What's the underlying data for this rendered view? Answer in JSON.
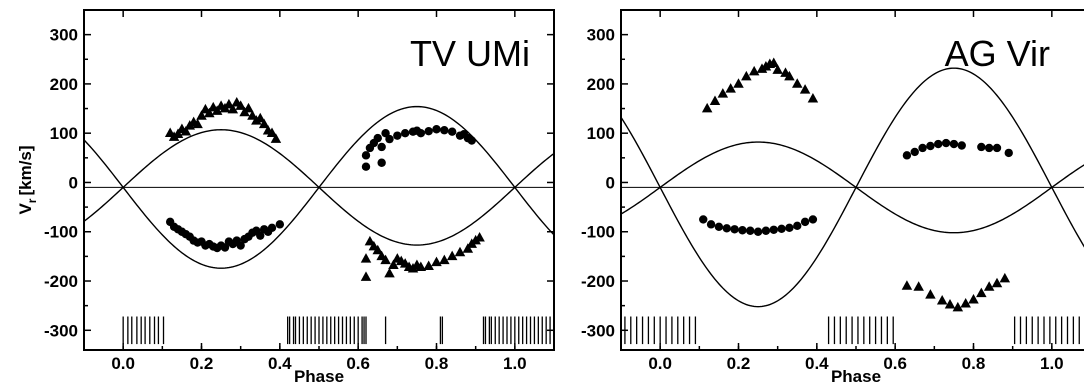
{
  "chart_data": [
    {
      "type": "scatter",
      "star": "TV UMi",
      "xlabel": "Phase",
      "ylabel": "V",
      "ylabel_sub": "r",
      "ylabel_unit": "[km/s]",
      "xlim": [
        -0.1,
        1.1
      ],
      "ylim": [
        -340,
        350
      ],
      "x_ticks": [
        0.0,
        0.2,
        0.4,
        0.6,
        0.8,
        1.0
      ],
      "x_tick_labels": [
        "0.0",
        "0.2",
        "0.4",
        "0.6",
        "0.8",
        "1.0"
      ],
      "y_ticks": [
        300,
        200,
        100,
        0,
        -100,
        -200,
        -300
      ],
      "y_tick_labels": [
        "300",
        "200",
        "100",
        "0",
        "-100",
        "-200",
        "-300"
      ],
      "gamma": -10,
      "model_curves": [
        {
          "marker": "circle",
          "gamma": -10,
          "K": 117
        },
        {
          "marker": "triangle",
          "gamma": -10,
          "K": -164
        }
      ],
      "series": [
        {
          "marker": "triangle",
          "points": [
            [
              0.12,
              100
            ],
            [
              0.13,
              92
            ],
            [
              0.14,
              98
            ],
            [
              0.15,
              108
            ],
            [
              0.16,
              103
            ],
            [
              0.17,
              115
            ],
            [
              0.18,
              122
            ],
            [
              0.19,
              118
            ],
            [
              0.2,
              135
            ],
            [
              0.21,
              148
            ],
            [
              0.22,
              140
            ],
            [
              0.23,
              152
            ],
            [
              0.24,
              145
            ],
            [
              0.25,
              155
            ],
            [
              0.26,
              150
            ],
            [
              0.27,
              158
            ],
            [
              0.28,
              148
            ],
            [
              0.29,
              162
            ],
            [
              0.3,
              155
            ],
            [
              0.31,
              142
            ],
            [
              0.32,
              150
            ],
            [
              0.33,
              135
            ],
            [
              0.34,
              125
            ],
            [
              0.35,
              130
            ],
            [
              0.36,
              118
            ],
            [
              0.37,
              105
            ],
            [
              0.38,
              100
            ],
            [
              0.39,
              88
            ],
            [
              0.62,
              -155
            ],
            [
              0.62,
              -192
            ],
            [
              0.63,
              -120
            ],
            [
              0.64,
              -130
            ],
            [
              0.65,
              -138
            ],
            [
              0.66,
              -150
            ],
            [
              0.67,
              -158
            ],
            [
              0.68,
              -185
            ],
            [
              0.69,
              -168
            ],
            [
              0.7,
              -155
            ],
            [
              0.71,
              -160
            ],
            [
              0.72,
              -165
            ],
            [
              0.73,
              -172
            ],
            [
              0.74,
              -175
            ],
            [
              0.75,
              -168
            ],
            [
              0.76,
              -172
            ],
            [
              0.78,
              -170
            ],
            [
              0.8,
              -162
            ],
            [
              0.82,
              -158
            ],
            [
              0.84,
              -150
            ],
            [
              0.86,
              -142
            ],
            [
              0.88,
              -135
            ],
            [
              0.89,
              -125
            ],
            [
              0.9,
              -118
            ],
            [
              0.91,
              -112
            ]
          ]
        },
        {
          "marker": "circle",
          "points": [
            [
              0.12,
              -80
            ],
            [
              0.13,
              -90
            ],
            [
              0.14,
              -95
            ],
            [
              0.15,
              -100
            ],
            [
              0.16,
              -105
            ],
            [
              0.17,
              -110
            ],
            [
              0.18,
              -118
            ],
            [
              0.19,
              -122
            ],
            [
              0.2,
              -120
            ],
            [
              0.21,
              -128
            ],
            [
              0.22,
              -125
            ],
            [
              0.23,
              -130
            ],
            [
              0.24,
              -133
            ],
            [
              0.25,
              -128
            ],
            [
              0.26,
              -132
            ],
            [
              0.27,
              -120
            ],
            [
              0.28,
              -125
            ],
            [
              0.29,
              -118
            ],
            [
              0.3,
              -128
            ],
            [
              0.31,
              -115
            ],
            [
              0.32,
              -110
            ],
            [
              0.33,
              -102
            ],
            [
              0.34,
              -98
            ],
            [
              0.35,
              -108
            ],
            [
              0.36,
              -95
            ],
            [
              0.37,
              -100
            ],
            [
              0.38,
              -92
            ],
            [
              0.4,
              -85
            ],
            [
              0.62,
              32
            ],
            [
              0.62,
              55
            ],
            [
              0.63,
              70
            ],
            [
              0.64,
              80
            ],
            [
              0.65,
              90
            ],
            [
              0.66,
              72
            ],
            [
              0.66,
              40
            ],
            [
              0.67,
              100
            ],
            [
              0.68,
              88
            ],
            [
              0.7,
              95
            ],
            [
              0.72,
              100
            ],
            [
              0.74,
              103
            ],
            [
              0.75,
              105
            ],
            [
              0.76,
              100
            ],
            [
              0.78,
              104
            ],
            [
              0.8,
              108
            ],
            [
              0.82,
              106
            ],
            [
              0.84,
              103
            ],
            [
              0.86,
              95
            ],
            [
              0.87,
              98
            ],
            [
              0.88,
              90
            ],
            [
              0.89,
              85
            ]
          ]
        }
      ],
      "rug_phases": [
        0.0,
        0.012,
        0.022,
        0.035,
        0.046,
        0.056,
        0.068,
        0.08,
        0.09,
        0.103,
        0.42,
        0.425,
        0.435,
        0.44,
        0.45,
        0.46,
        0.47,
        0.48,
        0.49,
        0.5,
        0.51,
        0.52,
        0.53,
        0.54,
        0.55,
        0.56,
        0.57,
        0.58,
        0.59,
        0.6,
        0.61,
        0.615,
        0.62,
        0.67,
        0.81,
        0.815,
        0.92,
        0.925,
        0.935,
        0.94,
        0.95,
        0.96,
        0.97,
        0.98,
        0.99,
        1.0,
        1.01,
        1.02,
        1.03,
        1.04,
        1.05,
        1.06,
        1.07,
        1.08,
        1.09,
        1.1,
        1.105
      ]
    },
    {
      "type": "scatter",
      "star": "AG Vir",
      "xlabel": "Phase",
      "xlim": [
        -0.1,
        1.1
      ],
      "ylim": [
        -340,
        350
      ],
      "x_ticks": [
        0.0,
        0.2,
        0.4,
        0.6,
        0.8,
        1.0
      ],
      "x_tick_labels": [
        "0.0",
        "0.2",
        "0.4",
        "0.6",
        "0.8",
        "1.0"
      ],
      "y_ticks": [
        300,
        200,
        100,
        0,
        -100,
        -200,
        -300
      ],
      "y_tick_labels": [
        "300",
        "200",
        "100",
        "0",
        "-100",
        "-200",
        "-300"
      ],
      "gamma": -10,
      "model_curves": [
        {
          "marker": "circle",
          "gamma": -10,
          "K": 92
        },
        {
          "marker": "triangle",
          "gamma": -10,
          "K": -242
        }
      ],
      "series": [
        {
          "marker": "triangle",
          "points": [
            [
              0.12,
              150
            ],
            [
              0.14,
              165
            ],
            [
              0.16,
              180
            ],
            [
              0.18,
              190
            ],
            [
              0.2,
              200
            ],
            [
              0.22,
              215
            ],
            [
              0.24,
              225
            ],
            [
              0.26,
              230
            ],
            [
              0.27,
              235
            ],
            [
              0.28,
              240
            ],
            [
              0.29,
              242
            ],
            [
              0.3,
              228
            ],
            [
              0.32,
              222
            ],
            [
              0.33,
              215
            ],
            [
              0.35,
              200
            ],
            [
              0.37,
              188
            ],
            [
              0.39,
              170
            ],
            [
              0.63,
              -210
            ],
            [
              0.66,
              -212
            ],
            [
              0.69,
              -228
            ],
            [
              0.72,
              -240
            ],
            [
              0.74,
              -248
            ],
            [
              0.76,
              -254
            ],
            [
              0.78,
              -246
            ],
            [
              0.8,
              -238
            ],
            [
              0.82,
              -225
            ],
            [
              0.84,
              -212
            ],
            [
              0.86,
              -205
            ],
            [
              0.88,
              -195
            ]
          ]
        },
        {
          "marker": "circle",
          "points": [
            [
              0.11,
              -75
            ],
            [
              0.13,
              -85
            ],
            [
              0.15,
              -90
            ],
            [
              0.17,
              -93
            ],
            [
              0.19,
              -95
            ],
            [
              0.21,
              -97
            ],
            [
              0.23,
              -98
            ],
            [
              0.25,
              -100
            ],
            [
              0.27,
              -98
            ],
            [
              0.29,
              -96
            ],
            [
              0.31,
              -94
            ],
            [
              0.33,
              -92
            ],
            [
              0.35,
              -88
            ],
            [
              0.37,
              -80
            ],
            [
              0.39,
              -75
            ],
            [
              0.63,
              55
            ],
            [
              0.65,
              62
            ],
            [
              0.67,
              70
            ],
            [
              0.69,
              74
            ],
            [
              0.71,
              78
            ],
            [
              0.73,
              80
            ],
            [
              0.75,
              78
            ],
            [
              0.77,
              75
            ],
            [
              0.82,
              72
            ],
            [
              0.84,
              70
            ],
            [
              0.86,
              70
            ],
            [
              0.89,
              60
            ]
          ]
        }
      ],
      "rug_phases": [
        -0.09,
        -0.075,
        -0.06,
        -0.045,
        -0.03,
        -0.015,
        0.0,
        0.015,
        0.03,
        0.045,
        0.06,
        0.075,
        0.09,
        0.43,
        0.445,
        0.46,
        0.475,
        0.49,
        0.505,
        0.52,
        0.535,
        0.55,
        0.565,
        0.58,
        0.595,
        0.905,
        0.92,
        0.935,
        0.95,
        0.965,
        0.98,
        0.995,
        1.01,
        1.025,
        1.04,
        1.055,
        1.07,
        1.085,
        1.1
      ]
    }
  ]
}
